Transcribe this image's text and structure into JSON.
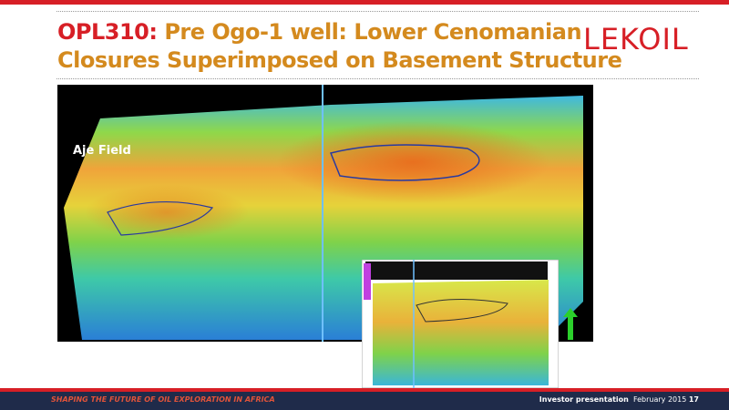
{
  "header": {
    "title_prefix": "OPL310:",
    "title_lines": [
      "Pre Ogo-1 well: Lower Cenomanian",
      "Closures Superimposed on Basement Structure"
    ],
    "logo": "LEKOIL"
  },
  "map": {
    "label": "Aje Field"
  },
  "footer": {
    "tagline": "SHAPING THE FUTURE OF OIL EXPLORATION IN AFRICA",
    "presentation": "Investor presentation",
    "date": "February 2015",
    "page": "17"
  }
}
